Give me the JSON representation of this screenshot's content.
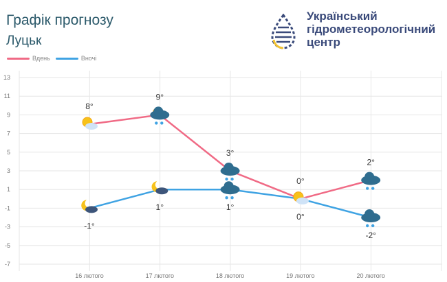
{
  "header": {
    "title": "Графік прогнозу",
    "city": "Луцьк",
    "org_lines": [
      "Український",
      "гідрометеорологічний",
      "центр"
    ]
  },
  "colors": {
    "day": "#f06a85",
    "night": "#3fa3e3",
    "text": "#2c5a6b"
  },
  "chart_data": {
    "type": "line",
    "categories": [
      "16 лютого",
      "17 лютого",
      "18 лютого",
      "19 лютого",
      "20 лютого"
    ],
    "series": [
      {
        "name": "Вдень",
        "values": [
          8,
          9,
          3,
          0,
          2
        ],
        "labels": [
          "8°",
          "9°",
          "3°",
          "0°",
          "2°"
        ],
        "icons": [
          "sun-cloud-icon",
          "sun-rain-cloud-icon",
          "rain-snow-cloud-icon",
          "sun-cloud-icon",
          "rain-snow-cloud-icon"
        ]
      },
      {
        "name": "Вночі",
        "values": [
          -1,
          1,
          1,
          0,
          -2
        ],
        "labels": [
          "-1°",
          "1°",
          "1°",
          "0°",
          "-2°"
        ],
        "icons": [
          "moon-cloud-icon",
          "moon-cloud-icon",
          "rain-snow-cloud-icon",
          "sun-cloud-icon",
          "rain-snow-cloud-icon"
        ]
      }
    ],
    "yticks": [
      13,
      11,
      9,
      7,
      5,
      3,
      1,
      -1,
      -3,
      -5,
      -7
    ],
    "ylim": [
      -7,
      13
    ],
    "grid": true,
    "legend": "top-left"
  }
}
